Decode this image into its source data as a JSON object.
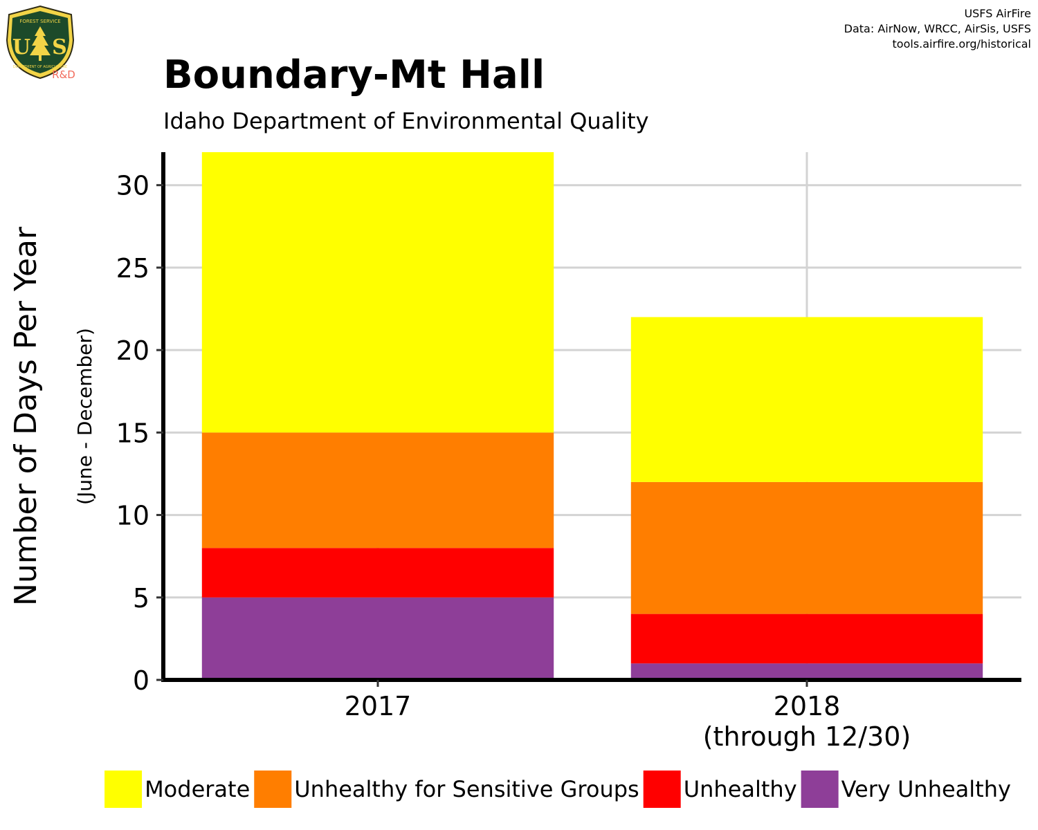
{
  "logo": {
    "top_text": "FOREST SERVICE",
    "initials": "US",
    "bottom_text": "DEPARTMENT OF AGRICULTURE",
    "tag": "R&D",
    "tag_color": "#f26b5b"
  },
  "credits": {
    "line1": "USFS AirFire",
    "line2": "Data: AirNow, WRCC, AirSis, USFS",
    "line3": "tools.airfire.org/historical"
  },
  "chart_data": {
    "type": "bar",
    "stacked": true,
    "title": "Boundary-Mt Hall",
    "subtitle": "Idaho Department of Environmental Quality",
    "ylabel": "Number of Days Per Year",
    "ylabel_sub": "(June - December)",
    "xlabel": "",
    "categories": [
      {
        "line1": "2017",
        "line2": ""
      },
      {
        "line1": "2018",
        "line2": "(through 12/30)"
      }
    ],
    "ylim": [
      0,
      32
    ],
    "yticks": [
      "0",
      "5",
      "10",
      "15",
      "20",
      "25",
      "30"
    ],
    "grid": true,
    "legend_position": "bottom",
    "series": [
      {
        "name": "Very Unhealthy",
        "color": "#8e3e98",
        "values": [
          5,
          1
        ]
      },
      {
        "name": "Unhealthy",
        "color": "#ff0000",
        "values": [
          3,
          3
        ]
      },
      {
        "name": "Unhealthy for Sensitive Groups",
        "color": "#ff7e00",
        "values": [
          7,
          8
        ]
      },
      {
        "name": "Moderate",
        "color": "#ffff00",
        "values": [
          17,
          10
        ]
      }
    ],
    "legend_order": [
      "Moderate",
      "Unhealthy for Sensitive Groups",
      "Unhealthy",
      "Very Unhealthy"
    ]
  }
}
